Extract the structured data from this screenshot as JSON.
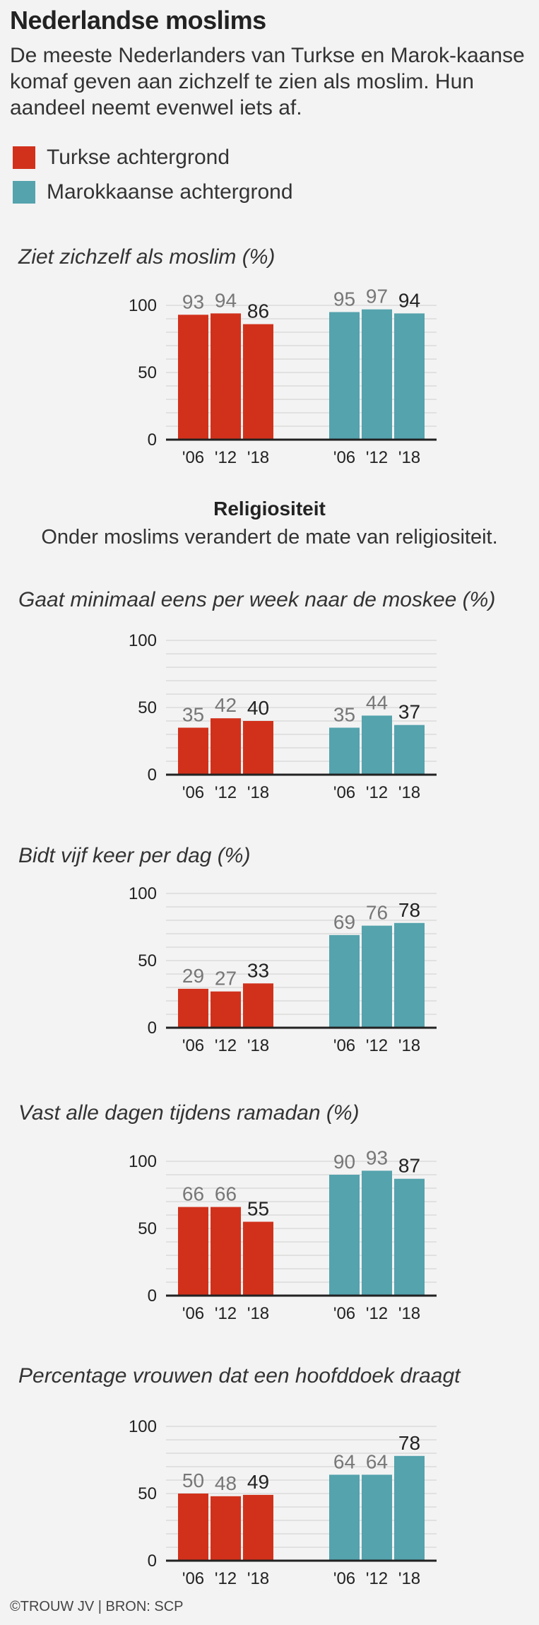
{
  "header": {
    "title": "Nederlandse moslims",
    "subtitle": "De meeste Nederlanders van Turkse en Marok-kaanse komaf geven aan zichzelf te zien als moslim. Hun aandeel neemt evenwel iets af."
  },
  "legend": [
    {
      "label": "Turkse achtergrond",
      "color": "#d1311b"
    },
    {
      "label": "Marokkaanse achtergrond",
      "color": "#54a3ad"
    }
  ],
  "section": {
    "title": "Religiositeit",
    "subtitle": "Onder moslims verandert de mate van religiositeit."
  },
  "chart_data": [
    {
      "type": "bar",
      "title": "Ziet zichzelf als moslim (%)",
      "categories": [
        "'06",
        "'12",
        "'18"
      ],
      "series": [
        {
          "name": "Turkse achtergrond",
          "values": [
            93,
            94,
            86
          ]
        },
        {
          "name": "Marokkaanse achtergrond",
          "values": [
            95,
            97,
            94
          ]
        }
      ],
      "yticks": [
        0,
        50,
        100
      ],
      "ylim": [
        0,
        100
      ],
      "grid": true
    },
    {
      "type": "bar",
      "title": "Gaat minimaal eens per week naar de moskee (%)",
      "categories": [
        "'06",
        "'12",
        "'18"
      ],
      "series": [
        {
          "name": "Turkse achtergrond",
          "values": [
            35,
            42,
            40
          ]
        },
        {
          "name": "Marokkaanse achtergrond",
          "values": [
            35,
            44,
            37
          ]
        }
      ],
      "yticks": [
        0,
        50,
        100
      ],
      "ylim": [
        0,
        100
      ],
      "grid": true
    },
    {
      "type": "bar",
      "title": "Bidt vijf keer per dag (%)",
      "categories": [
        "'06",
        "'12",
        "'18"
      ],
      "series": [
        {
          "name": "Turkse achtergrond",
          "values": [
            29,
            27,
            33
          ]
        },
        {
          "name": "Marokkaanse achtergrond",
          "values": [
            69,
            76,
            78
          ]
        }
      ],
      "yticks": [
        0,
        50,
        100
      ],
      "ylim": [
        0,
        100
      ],
      "grid": true
    },
    {
      "type": "bar",
      "title": "Vast alle dagen tijdens ramadan (%)",
      "categories": [
        "'06",
        "'12",
        "'18"
      ],
      "series": [
        {
          "name": "Turkse achtergrond",
          "values": [
            66,
            66,
            55
          ]
        },
        {
          "name": "Marokkaanse achtergrond",
          "values": [
            90,
            93,
            87
          ]
        }
      ],
      "yticks": [
        0,
        50,
        100
      ],
      "ylim": [
        0,
        100
      ],
      "grid": true
    },
    {
      "type": "bar",
      "title": "Percentage vrouwen dat een hoofddoek draagt",
      "categories": [
        "'06",
        "'12",
        "'18"
      ],
      "series": [
        {
          "name": "Turkse achtergrond",
          "values": [
            50,
            48,
            49
          ]
        },
        {
          "name": "Marokkaanse achtergrond",
          "values": [
            64,
            64,
            78
          ]
        }
      ],
      "yticks": [
        0,
        50,
        100
      ],
      "ylim": [
        0,
        100
      ],
      "grid": true
    }
  ],
  "footer": {
    "credit": "©TROUW JV | BRON: SCP"
  }
}
